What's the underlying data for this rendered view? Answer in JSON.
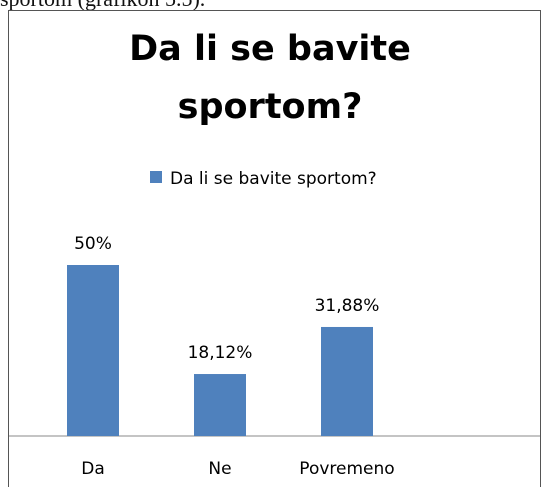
{
  "page_text": "sportom (grafikon 5.5).",
  "chart_data": {
    "type": "bar",
    "title": "Da li se bavite sportom?",
    "categories": [
      "Da",
      "Ne",
      "Povremeno"
    ],
    "series": [
      {
        "name": "Da li se bavite sportom?",
        "color": "#4f81bd",
        "values": [
          50,
          18.12,
          31.88
        ],
        "value_labels": [
          "50%",
          "18,12%",
          "31,88%"
        ]
      }
    ],
    "legend": "top"
  }
}
